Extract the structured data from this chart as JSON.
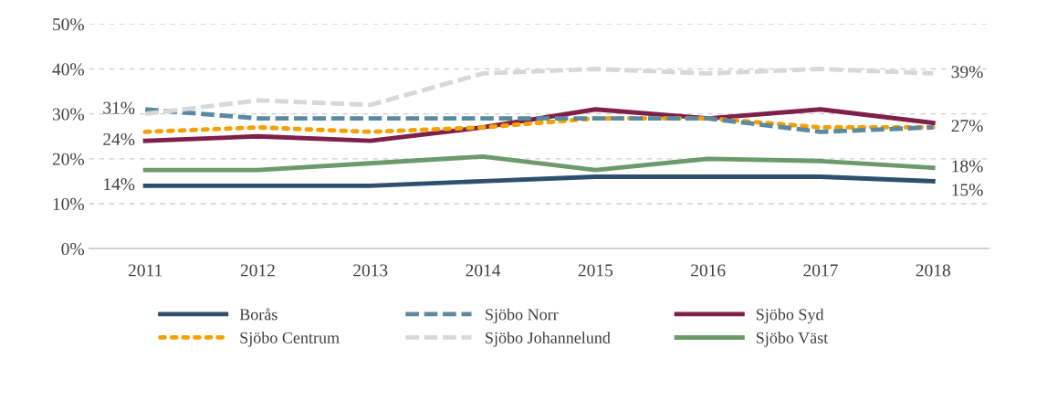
{
  "chart_data": {
    "type": "line",
    "categories": [
      "2011",
      "2012",
      "2013",
      "2014",
      "2015",
      "2016",
      "2017",
      "2018"
    ],
    "series": [
      {
        "name": "Borås",
        "color": "#2e4f6e",
        "line_style": "solid",
        "values": [
          14,
          14,
          14,
          15,
          16,
          16,
          16,
          15
        ]
      },
      {
        "name": "Sjöbo Norr",
        "color": "#5b8aa0",
        "line_style": "dashed",
        "values": [
          31,
          29,
          29,
          29,
          29,
          29,
          26,
          27
        ]
      },
      {
        "name": "Sjöbo Syd",
        "color": "#7f1f4a",
        "line_style": "solid",
        "values": [
          24,
          25,
          24,
          27,
          31,
          29,
          31,
          28
        ]
      },
      {
        "name": "Sjöbo Centrum",
        "color": "#f5a000",
        "line_style": "dotted",
        "values": [
          26,
          27,
          26,
          27,
          29,
          29,
          27,
          27
        ]
      },
      {
        "name": "Sjöbo Johannelund",
        "color": "#d8d8d8",
        "line_style": "dashed",
        "values": [
          30,
          33,
          32,
          39,
          40,
          39,
          40,
          39
        ]
      },
      {
        "name": "Sjöbo Väst",
        "color": "#6c9a6a",
        "line_style": "solid",
        "values": [
          17.5,
          17.5,
          19,
          20.5,
          17.5,
          20,
          19.5,
          18
        ]
      }
    ],
    "ylim": [
      0,
      50
    ],
    "yticks": [
      {
        "value": 0,
        "label": "0%"
      },
      {
        "value": 10,
        "label": "10%"
      },
      {
        "value": 20,
        "label": "20%"
      },
      {
        "value": 30,
        "label": "30%"
      },
      {
        "value": 40,
        "label": "40%"
      },
      {
        "value": 50,
        "label": "50%"
      }
    ],
    "annotations": [
      {
        "text": "31%",
        "x": "2011",
        "y": 31
      },
      {
        "text": "24%",
        "x": "2011",
        "y": 24
      },
      {
        "text": "14%",
        "x": "2011",
        "y": 14
      },
      {
        "text": "39%",
        "x": "2018",
        "y": 39
      },
      {
        "text": "27%",
        "x": "2018",
        "y": 27
      },
      {
        "text": "18%",
        "x": "2018",
        "y": 18
      },
      {
        "text": "15%",
        "x": "2018",
        "y": 15
      }
    ],
    "grid": "y",
    "legend": "bottom",
    "marker": "none"
  }
}
